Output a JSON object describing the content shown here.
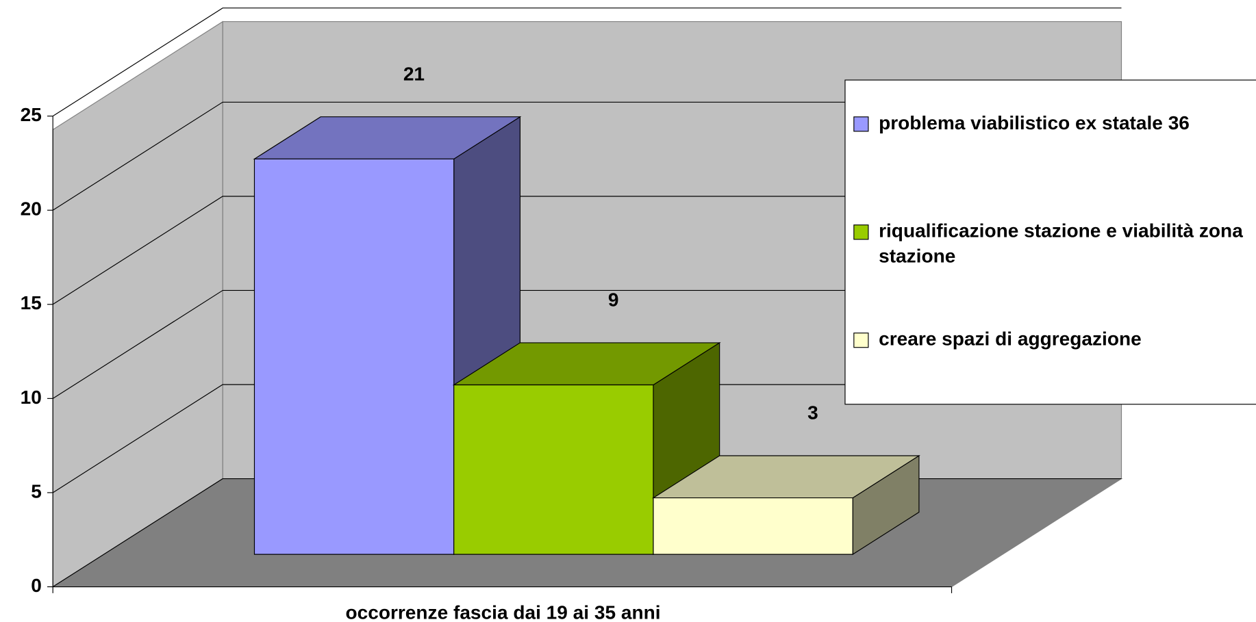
{
  "chart_data": {
    "type": "bar3d",
    "categories": [
      "occorrenze fascia dai 19 ai 35 anni"
    ],
    "series": [
      {
        "name": "problema viabilistico ex statale 36",
        "color": "#9999ff",
        "values": [
          21
        ]
      },
      {
        "name": "riqualificazione stazione e viabilità zona stazione",
        "color": "#99cc00",
        "values": [
          9
        ]
      },
      {
        "name": "creare spazi di aggregazione",
        "color": "#ffffcc",
        "values": [
          3
        ]
      }
    ],
    "ylim": [
      0,
      25
    ],
    "yticks": [
      0,
      5,
      10,
      15,
      20,
      25
    ],
    "grid": true,
    "legend": "right"
  }
}
